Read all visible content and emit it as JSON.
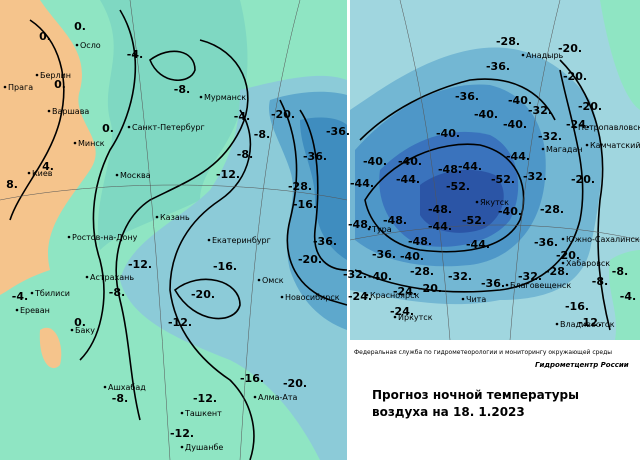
{
  "left_map": {
    "cities": [
      "Осло",
      "Берлин",
      "Прага",
      "Варшава",
      "Минск",
      "Санкт-Петербург",
      "Мурманск",
      "Киев",
      "Москва",
      "Казань",
      "Ростов-на-Дону",
      "Екатеринбург",
      "Астрахань",
      "Тбилиси",
      "Ереван",
      "Баку",
      "Омск",
      "Новосибирск",
      "Ашхабад",
      "Ташкент",
      "Алма-Ата",
      "Душанбе"
    ],
    "isotherms": [
      "0.",
      "0.",
      "0.",
      "-4.",
      "-8.",
      "-4.",
      "-8.",
      "-8.",
      "-20.",
      "0.",
      "4.",
      "8.",
      "-12.",
      "-16.",
      "-28.",
      "-36.",
      "-36.",
      "-36.",
      "-20.",
      "-12.",
      "-16.",
      "-20.",
      "-8.",
      "-4.",
      "0.",
      "-12.",
      "-16.",
      "-20.",
      "-8.",
      "-12.",
      "-12."
    ]
  },
  "right_map": {
    "cities": [
      "Анадырь",
      "Петропавловск",
      "Камчатский",
      "Магадан",
      "Якутск",
      "Тура",
      "Южно-Сахалинск",
      "Хабаровск",
      "Благовещенск",
      "Красноярск",
      "Чита",
      "Иркутск",
      "Владивосток"
    ],
    "isotherms": [
      "-28.",
      "-20.",
      "-36.",
      "-20.",
      "-36.",
      "-40.",
      "-32.",
      "-40.",
      "-40.",
      "-40.",
      "-32.",
      "-24.",
      "-20.",
      "-40.",
      "-40.",
      "-44.",
      "-32.",
      "-44.",
      "-44.",
      "-48.",
      "-52.",
      "-44.",
      "-20.",
      "-52.",
      "-28.",
      "-40.",
      "-48.",
      "-48.",
      "-52.",
      "-48.",
      "-48.",
      "-44.",
      "-44.",
      "-36.",
      "-36.",
      "-40.",
      "-20.",
      "-8.",
      "-32.",
      "-28.",
      "-28.",
      "-40.",
      "-20.",
      "-36.",
      "-32.",
      "-32.",
      "-24.",
      "-24.",
      "-16.",
      "-12.",
      "-24.",
      "-4.",
      "-8."
    ]
  },
  "caption": {
    "agency": "Федеральная служба по гидрометеорологии и мониторингу окружающей среды",
    "center": "Гидрометцентр России",
    "title_line1": "Прогноз ночной температуры",
    "title_line2": "воздуха на",
    "date": "18. 1.2023"
  }
}
